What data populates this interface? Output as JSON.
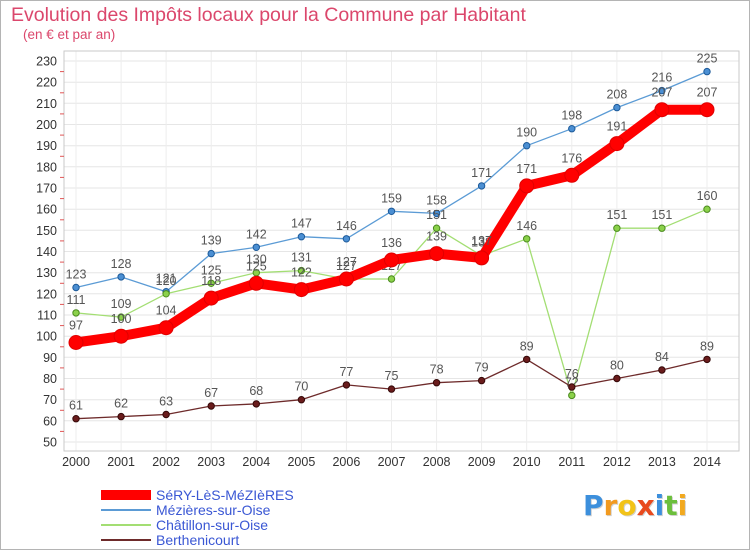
{
  "chart_data": {
    "type": "line",
    "title": "Evolution des Impôts locaux pour la Commune par Habitant",
    "subtitle": "(en € et par an)",
    "x": [
      2000,
      2001,
      2002,
      2003,
      2004,
      2005,
      2006,
      2007,
      2008,
      2009,
      2010,
      2011,
      2012,
      2013,
      2014
    ],
    "ylim": [
      50,
      230
    ],
    "yticks": [
      50,
      60,
      70,
      80,
      90,
      100,
      110,
      120,
      130,
      140,
      150,
      160,
      170,
      180,
      190,
      200,
      210,
      220,
      230
    ],
    "grid": true,
    "legend_position": "bottom-left",
    "series": [
      {
        "name": "SéRY-LèS-MéZIèRES",
        "color": "#ff0000",
        "values": [
          97,
          100,
          104,
          118,
          125,
          122,
          127,
          136,
          139,
          137,
          171,
          176,
          191,
          207,
          207
        ]
      },
      {
        "name": "Mézières-sur-Oise",
        "color": "#5b9bd5",
        "values": [
          123,
          128,
          121,
          139,
          142,
          147,
          146,
          159,
          158,
          171,
          190,
          198,
          208,
          216,
          225
        ]
      },
      {
        "name": "Châtillon-sur-Oise",
        "color": "#a3de73",
        "values": [
          111,
          109,
          120,
          125,
          130,
          131,
          127,
          127,
          151,
          138,
          146,
          72,
          151,
          151,
          160
        ]
      },
      {
        "name": "Berthenicourt",
        "color": "#6e2b2b",
        "values": [
          61,
          62,
          63,
          67,
          68,
          70,
          77,
          75,
          78,
          79,
          89,
          76,
          80,
          84,
          89
        ]
      }
    ]
  },
  "logo": {
    "text": "Proxiti",
    "colors": [
      "#3c8fdc",
      "#f29a1f",
      "#f2c318",
      "#e8491d",
      "#3c8fdc",
      "#6cbf3c",
      "#f2a91f"
    ]
  }
}
